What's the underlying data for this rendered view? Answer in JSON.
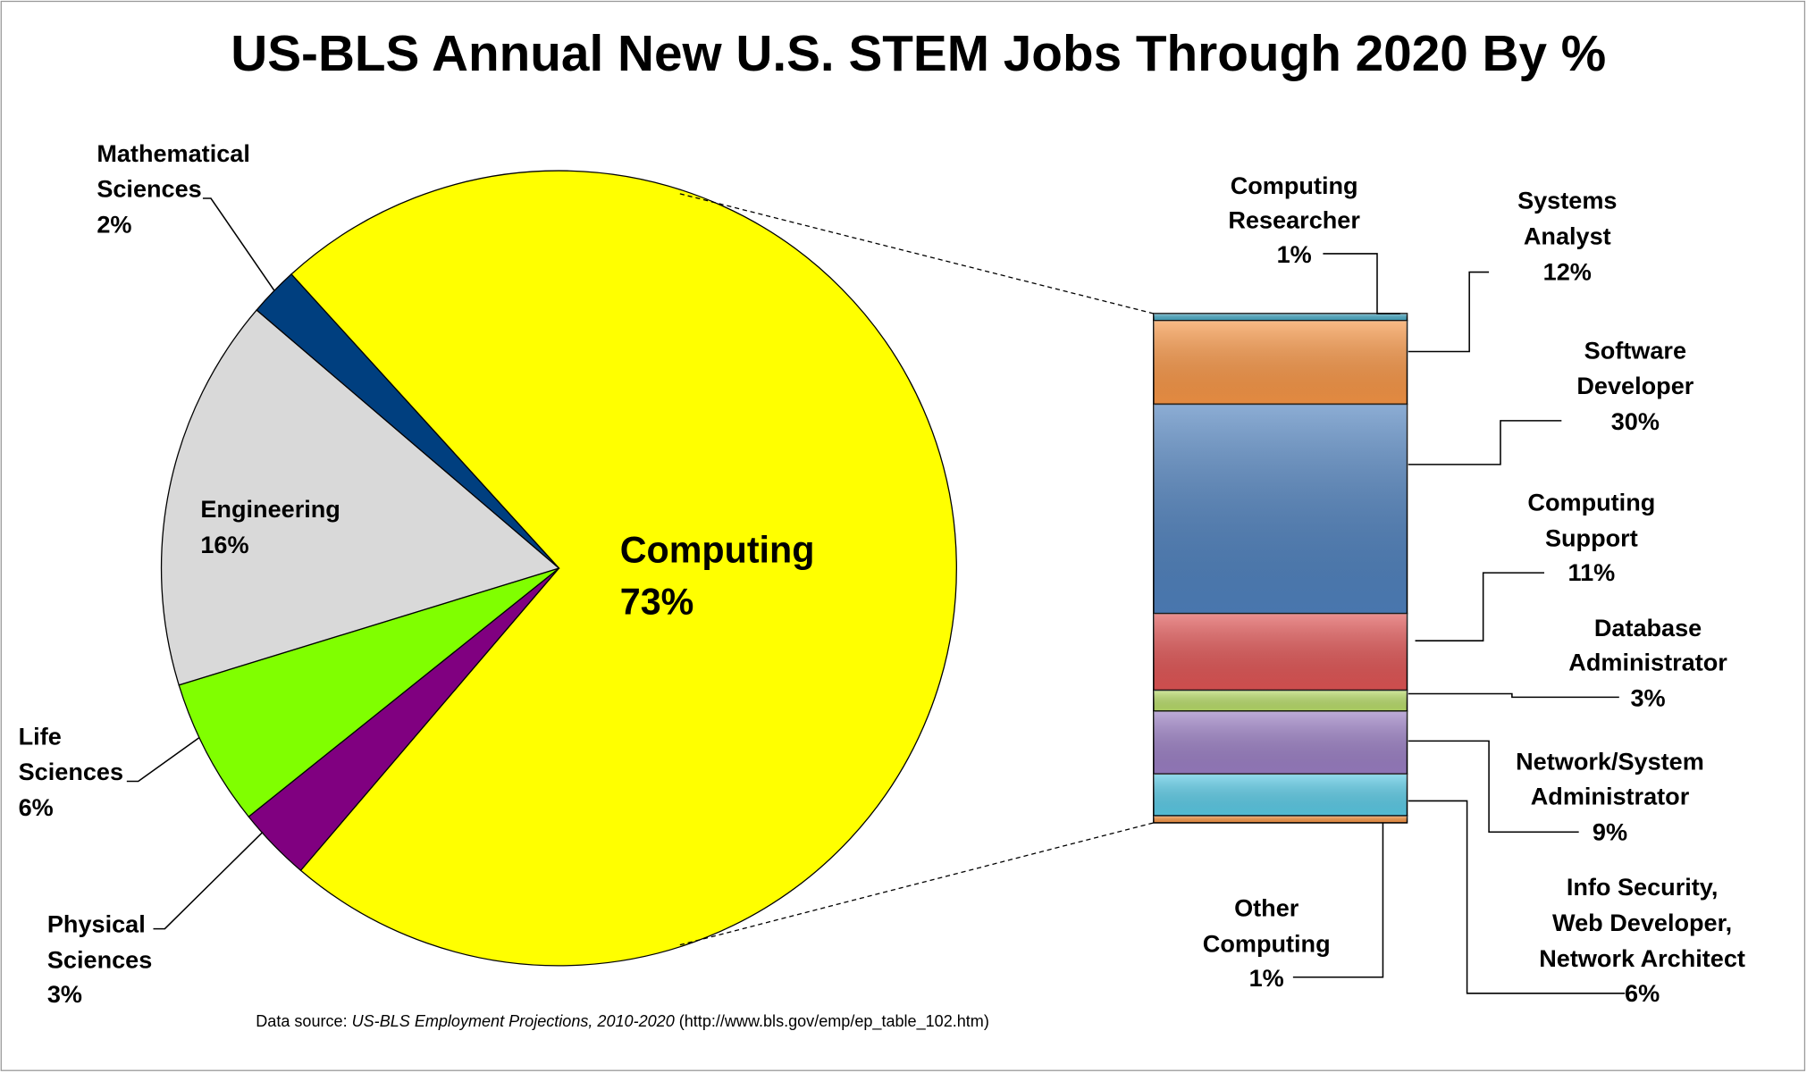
{
  "chart_data": [
    {
      "type": "pie",
      "title": "US-BLS Annual New U.S. STEM Jobs Through 2020 By %",
      "slices": [
        {
          "name": "Computing",
          "value": 73,
          "label_lines": [
            "Computing",
            "73%"
          ],
          "color": "#ffff00"
        },
        {
          "name": "Physical Sciences",
          "value": 3,
          "label_lines": [
            "Physical",
            "Sciences",
            "3%"
          ],
          "color": "#800080"
        },
        {
          "name": "Life Sciences",
          "value": 6,
          "label_lines": [
            "Life",
            "Sciences",
            "6%"
          ],
          "color": "#80ff00"
        },
        {
          "name": "Engineering",
          "value": 16,
          "label_lines": [
            "Engineering",
            "16%"
          ],
          "color": "#d9d9d9"
        },
        {
          "name": "Mathematical Sciences",
          "value": 2,
          "label_lines": [
            "Mathematical",
            "Sciences",
            "2%"
          ],
          "color": "#003f7f"
        }
      ]
    },
    {
      "type": "bar",
      "stacked": true,
      "description": "Breakdown of Computing slice",
      "segments": [
        {
          "name": "Computing Researcher",
          "value": 1,
          "label_lines": [
            "Computing",
            "Researcher",
            "1%"
          ],
          "color": "#4bacc6"
        },
        {
          "name": "Systems Analyst",
          "value": 12,
          "label_lines": [
            "Systems",
            "Analyst",
            "12%"
          ],
          "color": "#f79646"
        },
        {
          "name": "Software Developer",
          "value": 30,
          "label_lines": [
            "Software",
            "Developer",
            "30%"
          ],
          "color": "#4f81bd"
        },
        {
          "name": "Computing Support",
          "value": 11,
          "label_lines": [
            "Computing",
            "Support",
            "11%"
          ],
          "color": "#e05555"
        },
        {
          "name": "Database Administrator",
          "value": 3,
          "label_lines": [
            "Database",
            "Administrator",
            "3%"
          ],
          "color": "#b9dd6a"
        },
        {
          "name": "Network/System Administrator",
          "value": 9,
          "label_lines": [
            "Network/System",
            "Administrator",
            "9%"
          ],
          "color": "#9b7fc4"
        },
        {
          "name": "Info Security, Web Developer, Network Architect",
          "value": 6,
          "label_lines": [
            "Info Security,",
            "Web Developer,",
            "Network Architect",
            "6%"
          ],
          "color": "#5bcbe6"
        },
        {
          "name": "Other Computing",
          "value": 1,
          "label_lines": [
            "Other",
            "Computing",
            "1%"
          ],
          "color": "#f79646"
        }
      ]
    }
  ],
  "source": {
    "prefix": "Data source: ",
    "italic": "US-BLS Employment Projections, 2010-2020",
    "suffix": " (http://www.bls.gov/emp/ep_table_102.htm)"
  }
}
